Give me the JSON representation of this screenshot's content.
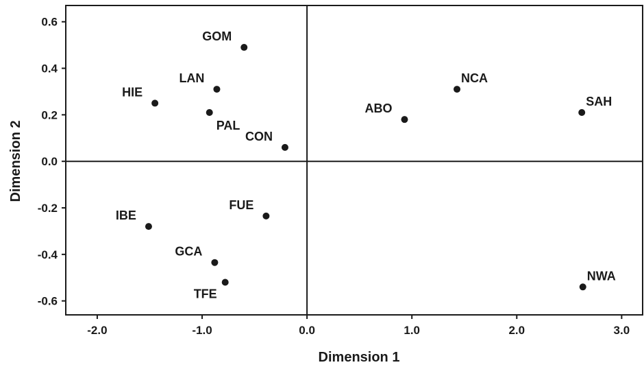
{
  "chart_data": {
    "type": "scatter",
    "title": "",
    "xlabel": "Dimension 1",
    "ylabel": "Dimension 2",
    "xlim": [
      -2.3,
      3.2
    ],
    "ylim": [
      -0.66,
      0.67
    ],
    "xticks": [
      -2.0,
      -1.0,
      0.0,
      1.0,
      2.0,
      3.0
    ],
    "xtick_labels": [
      "-2.0",
      "-1.0",
      "0.0",
      "1.0",
      "2.0",
      "3.0"
    ],
    "yticks": [
      0.6,
      0.4,
      0.2,
      0.0,
      -0.2,
      -0.4,
      -0.6
    ],
    "ytick_labels": [
      "0.6",
      "0.4",
      "0.2",
      "0.0",
      "-0.2",
      "-0.4",
      "-0.6"
    ],
    "reference_lines": {
      "x": 0.0,
      "y": 0.0
    },
    "grid": false,
    "marker_color": "#1a1a1a",
    "points": [
      {
        "label": "GOM",
        "x": -0.6,
        "y": 0.49,
        "label_pos": "upper-left"
      },
      {
        "label": "LAN",
        "x": -0.86,
        "y": 0.31,
        "label_pos": "upper-left"
      },
      {
        "label": "HIE",
        "x": -1.45,
        "y": 0.25,
        "label_pos": "upper-left"
      },
      {
        "label": "PAL",
        "x": -0.93,
        "y": 0.21,
        "label_pos": "lower-right"
      },
      {
        "label": "CON",
        "x": -0.21,
        "y": 0.06,
        "label_pos": "upper-left"
      },
      {
        "label": "ABO",
        "x": 0.93,
        "y": 0.18,
        "label_pos": "upper-left"
      },
      {
        "label": "NCA",
        "x": 1.43,
        "y": 0.31,
        "label_pos": "upper-right"
      },
      {
        "label": "SAH",
        "x": 2.62,
        "y": 0.21,
        "label_pos": "upper-right"
      },
      {
        "label": "FUE",
        "x": -0.39,
        "y": -0.235,
        "label_pos": "upper-left"
      },
      {
        "label": "IBE",
        "x": -1.51,
        "y": -0.28,
        "label_pos": "upper-left"
      },
      {
        "label": "GCA",
        "x": -0.88,
        "y": -0.435,
        "label_pos": "upper-left"
      },
      {
        "label": "TFE",
        "x": -0.78,
        "y": -0.52,
        "label_pos": "lower-left"
      },
      {
        "label": "NWA",
        "x": 2.63,
        "y": -0.54,
        "label_pos": "upper-right"
      }
    ]
  }
}
